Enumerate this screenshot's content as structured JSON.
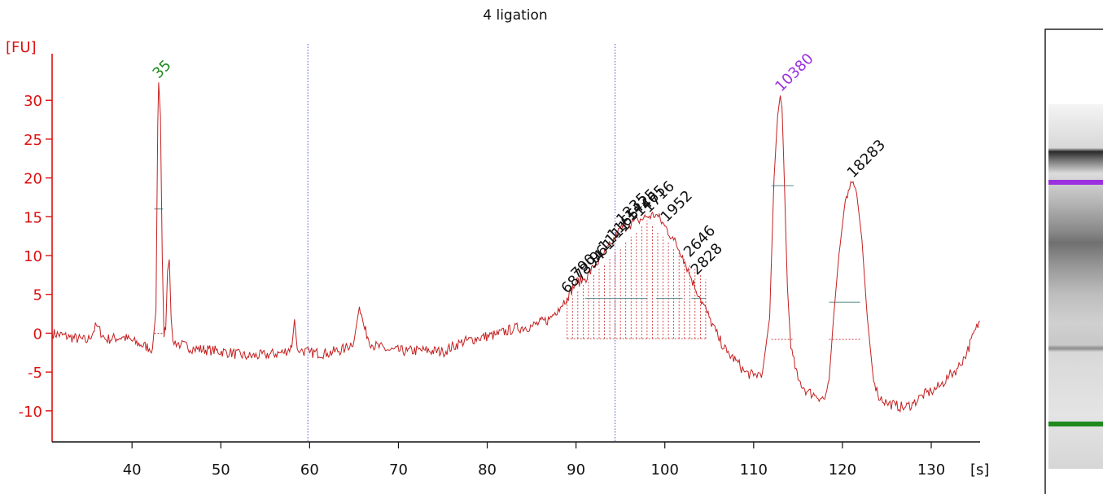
{
  "chart_data": {
    "type": "line",
    "title": "4 ligation",
    "ylabel": "[FU]",
    "xlabel": "[s]",
    "xlim": [
      31,
      135.5
    ],
    "ylim": [
      -14,
      36
    ],
    "xticks": [
      40,
      50,
      60,
      70,
      80,
      90,
      100,
      110,
      120,
      130
    ],
    "yticks": [
      -10,
      -5,
      0,
      5,
      10,
      15,
      20,
      25,
      30
    ],
    "grid": false,
    "colors": {
      "trace": "#c42020",
      "axis": "#dd1111",
      "marker_lower": "#1e8a1e",
      "marker_upper": "#9b30e0",
      "label_text": "#111111",
      "vline": "#4a55d8",
      "region_bar": "#5a8a8a"
    },
    "vlines": [
      59.8,
      94.4
    ],
    "peaks": [
      {
        "x": 43.0,
        "y": 32.3,
        "label": "35",
        "color": "marker_lower"
      },
      {
        "x": 113.1,
        "y": 30.6,
        "label": "10380",
        "color": "marker_upper"
      },
      {
        "x": 121.2,
        "y": 19.5,
        "label": "18283",
        "color": "label_text"
      },
      {
        "x": 89.0,
        "y": 4.6,
        "label": "687",
        "color": "label_text"
      },
      {
        "x": 90.1,
        "y": 6.5,
        "label": "790",
        "color": "label_text"
      },
      {
        "x": 91.1,
        "y": 7.0,
        "label": "894",
        "color": "label_text"
      },
      {
        "x": 92.2,
        "y": 8.5,
        "label": "961",
        "color": "label_text"
      },
      {
        "x": 93.2,
        "y": 10.0,
        "label": "1111",
        "color": "label_text"
      },
      {
        "x": 94.2,
        "y": 11.5,
        "label": "1165",
        "color": "label_text"
      },
      {
        "x": 95.2,
        "y": 13.5,
        "label": "1235",
        "color": "label_text"
      },
      {
        "x": 96.2,
        "y": 14.0,
        "label": "1425",
        "color": "label_text"
      },
      {
        "x": 97.2,
        "y": 14.5,
        "label": "1465",
        "color": "label_text"
      },
      {
        "x": 98.2,
        "y": 15.0,
        "label": "1716",
        "color": "label_text"
      },
      {
        "x": 100.2,
        "y": 13.8,
        "label": "1952",
        "color": "label_text"
      },
      {
        "x": 102.8,
        "y": 9.3,
        "label": "2646",
        "color": "label_text"
      },
      {
        "x": 103.6,
        "y": 7.0,
        "label": "2828",
        "color": "label_text"
      }
    ],
    "series": [
      {
        "x": [
          31,
          33,
          35,
          36,
          37,
          39,
          41,
          42.3,
          42.7,
          42.9,
          43.0,
          43.2,
          43.4,
          43.6,
          43.8,
          44.0,
          44.2,
          44.4,
          44.6,
          45.5,
          47,
          49,
          51,
          53,
          55,
          57,
          58,
          58.3,
          58.6,
          59,
          60,
          62,
          64,
          65,
          65.6,
          66.2,
          67,
          69,
          71,
          73,
          75,
          77,
          79,
          81,
          83,
          85,
          87,
          88,
          89,
          90,
          91,
          92,
          93,
          94,
          95,
          96,
          97,
          98,
          99,
          100,
          101,
          102,
          103,
          104,
          105,
          106,
          107,
          108,
          109,
          110,
          111,
          111.8,
          112.3,
          112.7,
          113.0,
          113.2,
          113.5,
          113.8,
          114.2,
          115,
          116,
          117,
          118,
          118.5,
          119,
          119.6,
          120.2,
          120.8,
          121.2,
          121.6,
          122.2,
          122.8,
          123.4,
          124,
          125,
          126,
          127,
          128,
          129,
          130,
          131,
          132,
          133,
          134,
          135,
          135.5
        ],
        "y": [
          0,
          -0.5,
          -1,
          1,
          -0.8,
          -0.5,
          -1.5,
          -2,
          3,
          27,
          32.3,
          28,
          10,
          -0.5,
          0.5,
          8,
          9.5,
          2,
          -1,
          -1.5,
          -2,
          -2.2,
          -2.5,
          -3,
          -2.8,
          -2.5,
          -1.8,
          1.8,
          -2,
          -2.2,
          -2.5,
          -2.6,
          -2,
          -1,
          3.4,
          0.5,
          -1.5,
          -2.2,
          -2.3,
          -2.2,
          -2.4,
          -1.2,
          -0.6,
          -0.2,
          0.6,
          0.9,
          1.8,
          3.2,
          4.6,
          6.5,
          7.0,
          8.5,
          10.0,
          11.5,
          13.5,
          14.0,
          14.5,
          15.0,
          15.3,
          13.8,
          12,
          10,
          7,
          4.5,
          2,
          -0.5,
          -2.5,
          -3.5,
          -5,
          -5.5,
          -5,
          2,
          20,
          28,
          30.6,
          29,
          18,
          6,
          -2,
          -6,
          -7.5,
          -8,
          -8.5,
          -6,
          2,
          10,
          16,
          18.5,
          19.5,
          18,
          12,
          2,
          -5,
          -8,
          -9,
          -9.3,
          -9.6,
          -9,
          -8,
          -7.5,
          -6.8,
          -5.5,
          -4.5,
          -2.5,
          0.5,
          1.5
        ]
      }
    ]
  }
}
